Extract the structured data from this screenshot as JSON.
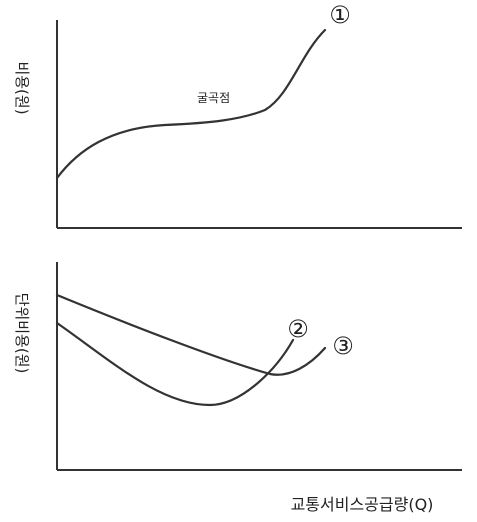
{
  "top_panel": {
    "y_label": "비용(원)",
    "curve_annotation": "굴곡점",
    "curve_marker": "①"
  },
  "bottom_panel": {
    "y_label": "단위비용(원)",
    "curve_markers": [
      "②",
      "③"
    ]
  },
  "x_label": "교통서비스공급량(Q)"
}
